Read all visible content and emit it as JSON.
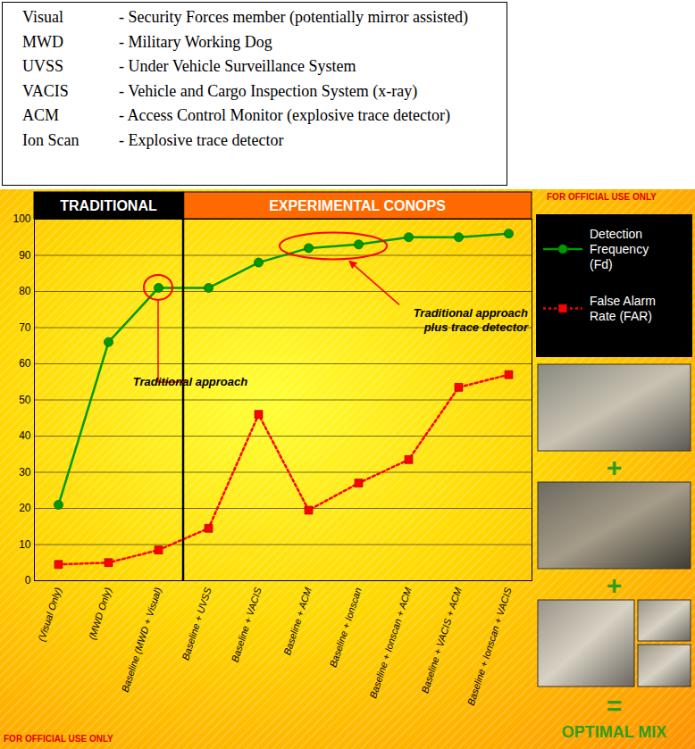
{
  "chart_data": {
    "type": "line",
    "definitions": [
      {
        "term": "Visual",
        "text": "- Security Forces member (potentially mirror assisted)"
      },
      {
        "term": "MWD",
        "text": "- Military Working Dog"
      },
      {
        "term": "UVSS",
        "text": "- Under Vehicle Surveillance System"
      },
      {
        "term": "VACIS",
        "text": "- Vehicle and Cargo Inspection System (x-ray)"
      },
      {
        "term": "ACM",
        "text": "- Access Control Monitor (explosive trace detector)"
      },
      {
        "term": "Ion Scan",
        "text": "- Explosive trace detector"
      }
    ],
    "markings": [
      "FOR OFFICIAL USE ONLY",
      "FOR OFFICIAL USE ONLY"
    ],
    "sections": [
      {
        "label": "TRADITIONAL",
        "from": "(Visual Only)",
        "to": "Baseline (MWD + Visual)"
      },
      {
        "label": "EXPERIMENTAL CONOPS",
        "from": "Baseline + UVSS",
        "to": "Baseline + Ionscan + VACIS"
      }
    ],
    "categories": [
      "(Visual Only)",
      "(MWD Only)",
      "Baseline (MWD + Visual)",
      "Baseline + UVSS",
      "Baseline + VACIS",
      "Baseline + ACM",
      "Baseline + Ionscan",
      "Baseline + Ionscan + ACM",
      "Baseline + VACIS + ACM",
      "Baseline + Ionscan + VACIS"
    ],
    "series": [
      {
        "name": "Detection Frequency (Fd)",
        "color": "#009900",
        "marker": "circle",
        "line_style": "solid",
        "values": [
          21,
          66,
          81,
          81,
          88,
          92,
          93,
          95,
          95,
          96
        ]
      },
      {
        "name": "False Alarm Rate (FAR)",
        "color": "#ff0000",
        "marker": "square",
        "line_style": "dotted",
        "values": [
          4.5,
          5,
          8.5,
          14.5,
          46,
          19.5,
          27,
          33.5,
          53.5,
          57
        ]
      }
    ],
    "ylim": [
      0,
      100
    ],
    "yticks": [
      0,
      10,
      20,
      30,
      40,
      50,
      60,
      70,
      80,
      90,
      100
    ],
    "grid": true,
    "legend": "right",
    "annotations": [
      {
        "text": "Traditional approach",
        "series": "Detection Frequency (Fd)",
        "categories": [
          "Baseline (MWD + Visual)"
        ]
      },
      {
        "text": "Traditional approach plus trace detector",
        "series": "Detection Frequency (Fd)",
        "categories": [
          "Baseline + ACM",
          "Baseline + Ionscan"
        ]
      }
    ],
    "panel": {
      "operators": [
        "+",
        "+",
        "="
      ],
      "caption": "OPTIMAL MIX"
    }
  }
}
